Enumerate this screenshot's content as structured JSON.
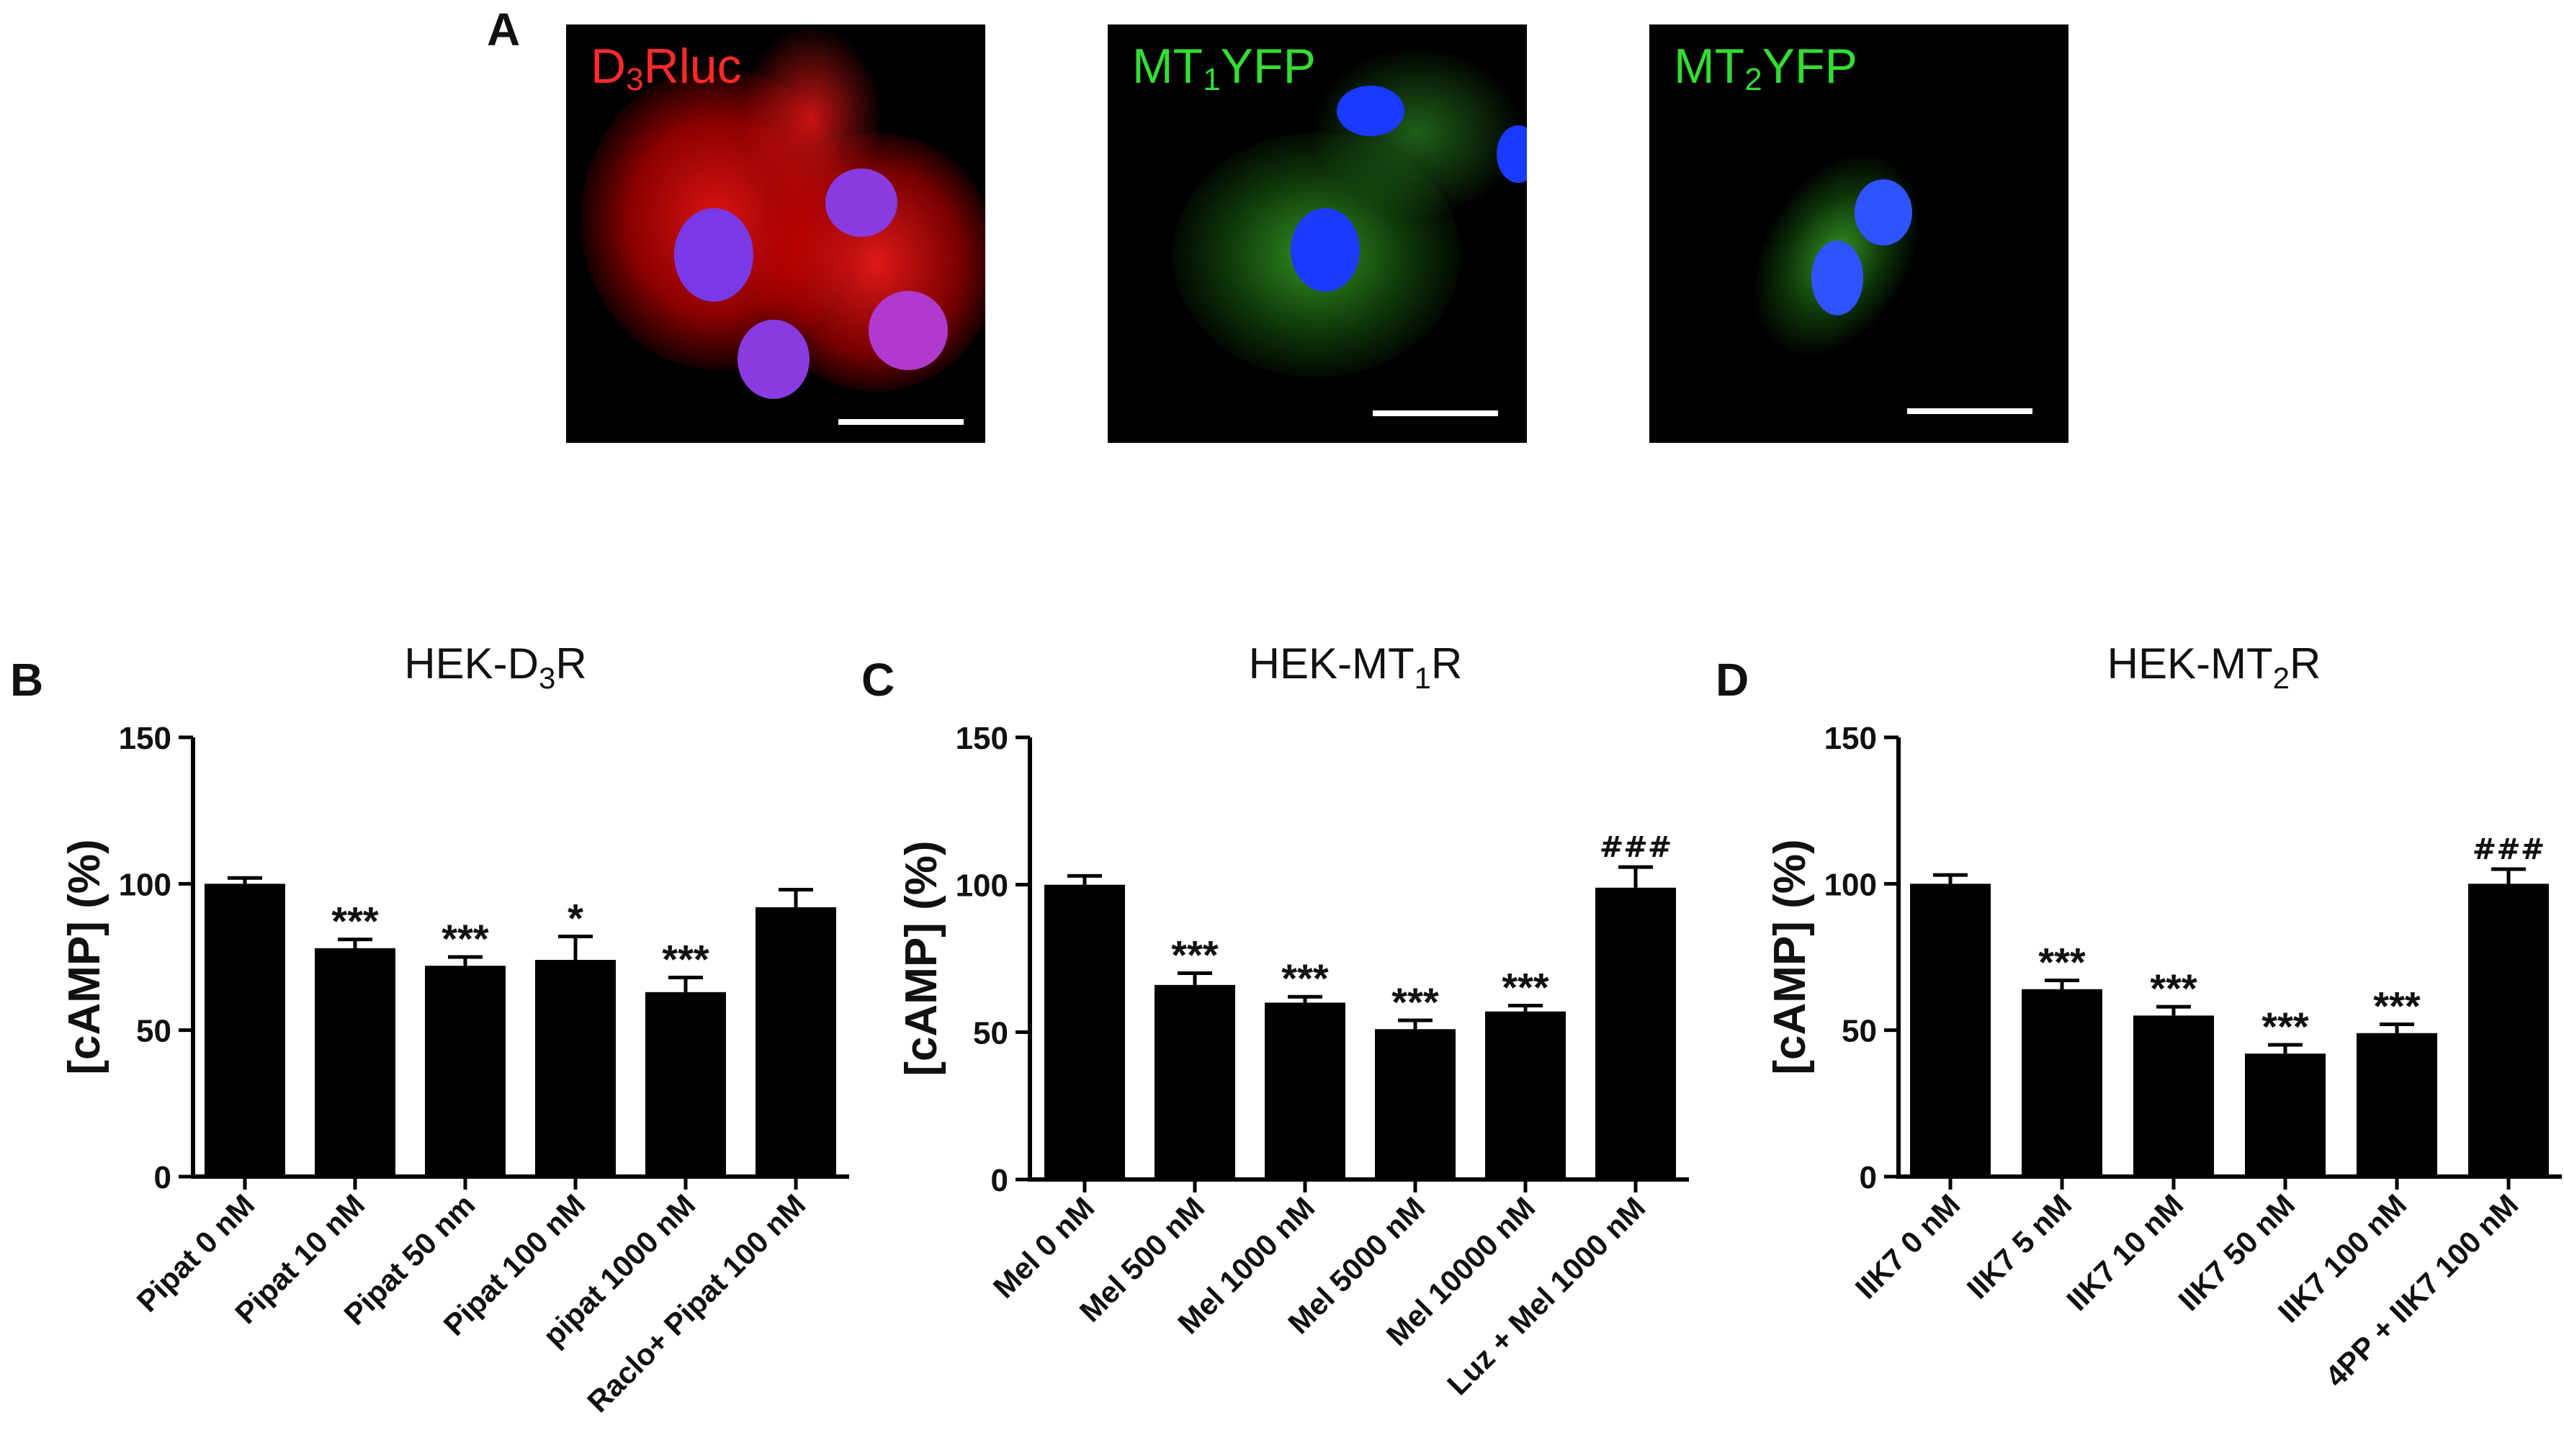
{
  "panel_a": {
    "letter": "A",
    "images": [
      {
        "name": "D3Rluc",
        "label_main": "D",
        "label_sub": "3",
        "label_tail": "Rluc",
        "color": "#ff2a2a"
      },
      {
        "name": "MT1YFP",
        "label_main": "MT",
        "label_sub": "1",
        "label_tail": "YFP",
        "color": "#33dd33"
      },
      {
        "name": "MT2YFP",
        "label_main": "MT",
        "label_sub": "2",
        "label_tail": "YFP",
        "color": "#33dd33"
      }
    ]
  },
  "colors": {
    "bars": "#000000",
    "axis": "#000000",
    "nucleus": "#2233ff",
    "text": "#111111"
  },
  "chart_data": [
    {
      "panel": "B",
      "type": "bar",
      "title_main": "HEK-D",
      "title_sub": "3",
      "title_tail": "R",
      "ylabel": "[cAMP] (%)",
      "ylim": [
        0,
        150
      ],
      "yticks": [
        0,
        50,
        100,
        150
      ],
      "categories": [
        "Pipat 0 nM",
        "Pipat 10 nM",
        "Pipat 50 nm",
        "Pipat 100 nM",
        "pipat 1000 nM",
        "Raclo+ Pipat 100 nM"
      ],
      "values": [
        100,
        78,
        72,
        74,
        63,
        92
      ],
      "errors": [
        2,
        3,
        3,
        8,
        5,
        6
      ],
      "annotations": [
        "",
        "***",
        "***",
        "*",
        "***",
        ""
      ]
    },
    {
      "panel": "C",
      "type": "bar",
      "title_main": "HEK-MT",
      "title_sub": "1",
      "title_tail": "R",
      "ylabel": "[cAMP] (%)",
      "ylim": [
        0,
        150
      ],
      "yticks": [
        0,
        50,
        100,
        150
      ],
      "categories": [
        "Mel 0 nM",
        "Mel 500 nM",
        "Mel 1000 nM",
        "Mel 5000 nM",
        "Mel 10000 nM",
        "Luz + Mel 1000 nM"
      ],
      "values": [
        100,
        66,
        60,
        51,
        57,
        99
      ],
      "errors": [
        3,
        4,
        2,
        3,
        2,
        7
      ],
      "annotations": [
        "",
        "***",
        "***",
        "***",
        "***",
        "###"
      ]
    },
    {
      "panel": "D",
      "type": "bar",
      "title_main": "HEK-MT",
      "title_sub": "2",
      "title_tail": "R",
      "ylabel": "[cAMP] (%)",
      "ylim": [
        0,
        150
      ],
      "yticks": [
        0,
        50,
        100,
        150
      ],
      "categories": [
        "IIK7 0 nM",
        "IIK7 5 nM",
        "IIK7 10 nM",
        "IIK7 50 nM",
        "IIK7 100 nM",
        "4PP + IIK7 100 nM"
      ],
      "values": [
        100,
        64,
        55,
        42,
        49,
        100
      ],
      "errors": [
        3,
        3,
        3,
        3,
        3,
        5
      ],
      "annotations": [
        "",
        "***",
        "***",
        "***",
        "***",
        "###"
      ]
    }
  ]
}
